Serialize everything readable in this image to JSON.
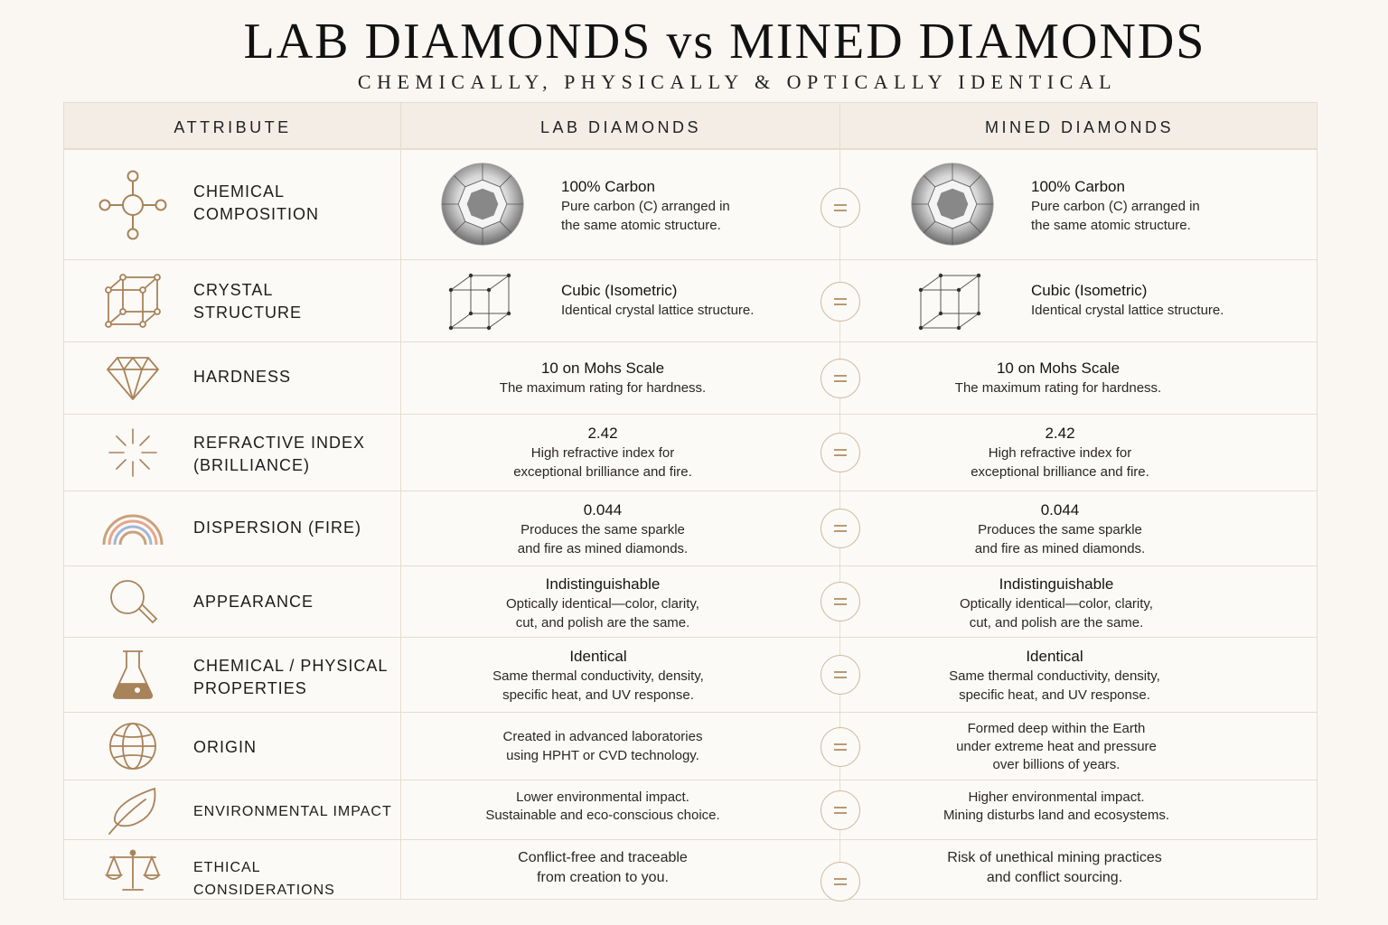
{
  "title": "LAB DIAMONDS vs MINED DIAMONDS",
  "subtitle": "CHEMICALLY, PHYSICALLY & OPTICALLY IDENTICAL",
  "colors": {
    "accent": "#b89a73",
    "icon": "#a8835a",
    "border": "#e6dccf",
    "header_bg": "#f3ede5",
    "background": "#faf7f3"
  },
  "headers": {
    "attribute": "ATTRIBUTE",
    "lab": "LAB DIAMONDS",
    "mined": "MINED DIAMONDS"
  },
  "equals_symbol": "=",
  "rows": [
    {
      "icon": "molecule-icon",
      "label_1": "CHEMICAL",
      "label_2": "COMPOSITION",
      "lab": {
        "title": "100% Carbon",
        "desc_1": "Pure carbon (C) arranged in",
        "desc_2": "the same atomic structure."
      },
      "mined": {
        "title": "100% Carbon",
        "desc_1": "Pure carbon (C) arranged in",
        "desc_2": "the same atomic structure."
      }
    },
    {
      "icon": "cube-lattice-icon",
      "label_1": "CRYSTAL",
      "label_2": "STRUCTURE",
      "lab": {
        "title": "Cubic (Isometric)",
        "desc_1": "Identical crystal lattice structure."
      },
      "mined": {
        "title": "Cubic (Isometric)",
        "desc_1": "Identical crystal lattice structure."
      }
    },
    {
      "icon": "diamond-icon",
      "label_1": "HARDNESS",
      "lab": {
        "title": "10 on Mohs Scale",
        "desc_1": "The maximum rating for hardness."
      },
      "mined": {
        "title": "10 on Mohs Scale",
        "desc_1": "The maximum rating for hardness."
      }
    },
    {
      "icon": "sparkle-icon",
      "label_1": "REFRACTIVE INDEX",
      "label_2": "(BRILLIANCE)",
      "lab": {
        "title": "2.42",
        "desc_1": "High refractive index for",
        "desc_2": "exceptional brilliance and fire."
      },
      "mined": {
        "title": "2.42",
        "desc_1": "High refractive index for",
        "desc_2": "exceptional brilliance and fire."
      }
    },
    {
      "icon": "rainbow-icon",
      "label_1": "DISPERSION (FIRE)",
      "lab": {
        "title": "0.044",
        "desc_1": "Produces the same sparkle",
        "desc_2": "and fire as mined diamonds."
      },
      "mined": {
        "title": "0.044",
        "desc_1": "Produces the same sparkle",
        "desc_2": "and fire as mined diamonds."
      }
    },
    {
      "icon": "magnifier-icon",
      "label_1": "APPEARANCE",
      "lab": {
        "title": "Indistinguishable",
        "desc_1": "Optically identical—color, clarity,",
        "desc_2": "cut, and polish are the same."
      },
      "mined": {
        "title": "Indistinguishable",
        "desc_1": "Optically identical—color, clarity,",
        "desc_2": "cut, and polish are the same."
      }
    },
    {
      "icon": "flask-icon",
      "label_1": "CHEMICAL / PHYSICAL",
      "label_2": "PROPERTIES",
      "lab": {
        "title": "Identical",
        "desc_1": "Same thermal conductivity, density,",
        "desc_2": "specific heat, and UV response."
      },
      "mined": {
        "title": "Identical",
        "desc_1": "Same thermal conductivity, density,",
        "desc_2": "specific heat, and UV response."
      }
    },
    {
      "icon": "globe-icon",
      "label_1": "ORIGIN",
      "lab": {
        "desc_1": "Created in advanced laboratories",
        "desc_2": "using HPHT or CVD technology."
      },
      "mined": {
        "desc_1": "Formed deep within the Earth",
        "desc_2": "under extreme heat and pressure",
        "desc_3": "over billions of years."
      }
    },
    {
      "icon": "leaf-icon",
      "label_1": "ENVIRONMENTAL IMPACT",
      "lab": {
        "desc_1": "Lower environmental impact.",
        "desc_2": "Sustainable and eco-conscious choice."
      },
      "mined": {
        "desc_1": "Higher environmental impact.",
        "desc_2": "Mining disturbs land and ecosystems."
      }
    },
    {
      "icon": "scales-icon",
      "label_1": "ETHICAL CONSIDERATIONS",
      "lab": {
        "desc_1": "Conflict-free and traceable",
        "desc_2": "from creation to you."
      },
      "mined": {
        "desc_1": "Risk of unethical mining practices",
        "desc_2": "and conflict sourcing."
      }
    }
  ]
}
